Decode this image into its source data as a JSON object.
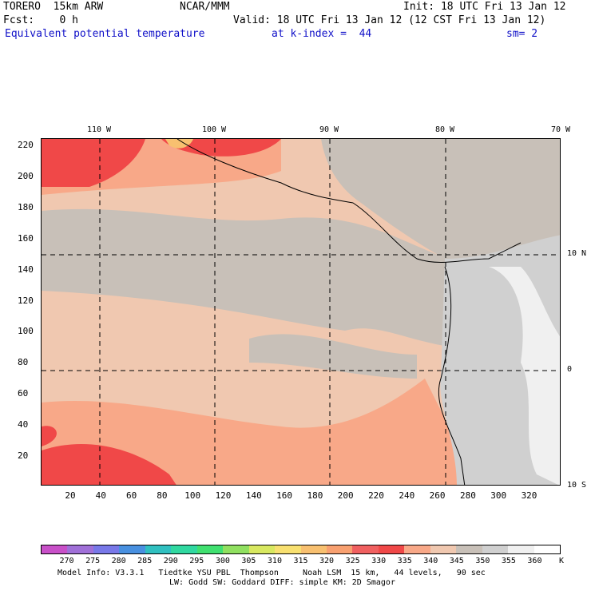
{
  "header": {
    "model": "TORERO  15km ARW",
    "center": "NCAR/MMM",
    "init": "Init: 18 UTC Fri 13 Jan 12",
    "fcst": "Fcst:    0 h",
    "valid": "Valid: 18 UTC Fri 13 Jan 12 (12 CST Fri 13 Jan 12)",
    "field": "Equivalent potential temperature",
    "level": "at k-index =  44",
    "smooth": "sm= 2"
  },
  "lon_labels": [
    "110 W",
    "100 W",
    "90 W",
    "80 W",
    "70 W"
  ],
  "lat_labels": [
    "10 N",
    "0",
    "10 S"
  ],
  "x_ticks": [
    "20",
    "40",
    "60",
    "80",
    "100",
    "120",
    "140",
    "160",
    "180",
    "200",
    "220",
    "240",
    "260",
    "280",
    "300",
    "320"
  ],
  "y_ticks": [
    "220",
    "200",
    "180",
    "160",
    "140",
    "120",
    "100",
    "80",
    "60",
    "40",
    "20"
  ],
  "colorbar": {
    "labels": [
      "270",
      "275",
      "280",
      "285",
      "290",
      "295",
      "300",
      "305",
      "310",
      "315",
      "320",
      "325",
      "330",
      "335",
      "340",
      "345",
      "350",
      "355",
      "360"
    ],
    "unit": "K",
    "colors": [
      "#c850c8",
      "#a070d8",
      "#7878e8",
      "#4890e0",
      "#30c0c0",
      "#30d8a0",
      "#40e070",
      "#90e060",
      "#d8e860",
      "#f8e070",
      "#f8c070",
      "#f8a070",
      "#f06060",
      "#f04848",
      "#f8a888",
      "#f0c8b0",
      "#c8c0b8",
      "#d0d0d0",
      "#f0f0f0",
      "#ffffff"
    ]
  },
  "footer": {
    "line1": "Model Info: V3.3.1   Tiedtke YSU PBL  Thompson     Noah LSM  15 km,   44 levels,   90 sec",
    "line2": "LW: Godd SW: Goddard DIFF: simple KM: 2D Smagor"
  }
}
